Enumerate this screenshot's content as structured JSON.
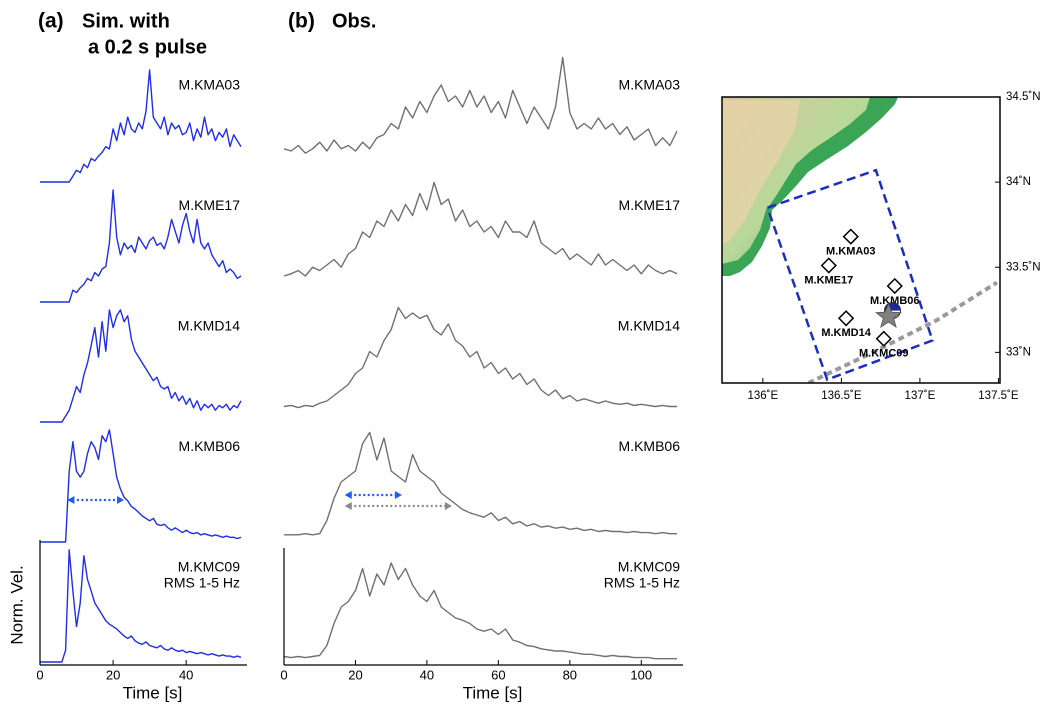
{
  "chart_data": [
    {
      "type": "line",
      "panel_label": "(a)",
      "title": [
        "Sim. with",
        "a 0.2 s pulse"
      ],
      "title_color": "#1a3cf0",
      "xlabel": "Time [s]",
      "ylabel": "Norm. Vel.",
      "x": [
        0,
        1,
        2,
        3,
        4,
        5,
        6,
        7,
        8,
        9,
        10,
        11,
        12,
        13,
        14,
        15,
        16,
        17,
        18,
        19,
        20,
        21,
        22,
        23,
        24,
        25,
        26,
        27,
        28,
        29,
        30,
        31,
        32,
        33,
        34,
        35,
        36,
        37,
        38,
        39,
        40,
        41,
        42,
        43,
        44,
        45,
        46,
        47,
        48,
        49,
        50,
        51,
        52,
        53,
        54,
        55
      ],
      "xlim": [
        0,
        55
      ],
      "xticks": [
        0,
        20,
        40
      ],
      "ylim": [
        0,
        1
      ],
      "series": [
        {
          "name": "M.KMA03",
          "color": "#1f2fe6",
          "values": [
            0,
            0,
            0,
            0,
            0,
            0,
            0,
            0,
            0,
            0.05,
            0.1,
            0.08,
            0.15,
            0.12,
            0.2,
            0.18,
            0.22,
            0.25,
            0.3,
            0.28,
            0.45,
            0.35,
            0.5,
            0.4,
            0.55,
            0.45,
            0.42,
            0.5,
            0.45,
            0.6,
            0.95,
            0.55,
            0.5,
            0.45,
            0.55,
            0.4,
            0.5,
            0.45,
            0.48,
            0.4,
            0.42,
            0.5,
            0.35,
            0.45,
            0.38,
            0.55,
            0.4,
            0.45,
            0.35,
            0.42,
            0.38,
            0.45,
            0.3,
            0.4,
            0.35,
            0.3
          ]
        },
        {
          "name": "M.KME17",
          "color": "#1f2fe6",
          "values": [
            0,
            0,
            0,
            0,
            0,
            0,
            0,
            0,
            0,
            0.1,
            0.08,
            0.12,
            0.15,
            0.2,
            0.18,
            0.25,
            0.22,
            0.28,
            0.3,
            0.5,
            0.95,
            0.55,
            0.4,
            0.5,
            0.45,
            0.48,
            0.42,
            0.55,
            0.5,
            0.45,
            0.52,
            0.55,
            0.48,
            0.5,
            0.45,
            0.55,
            0.7,
            0.6,
            0.5,
            0.65,
            0.75,
            0.6,
            0.5,
            0.7,
            0.5,
            0.45,
            0.5,
            0.4,
            0.35,
            0.3,
            0.35,
            0.25,
            0.28,
            0.25,
            0.2,
            0.22
          ]
        },
        {
          "name": "M.KMD14",
          "color": "#1f2fe6",
          "values": [
            0,
            0,
            0,
            0,
            0,
            0,
            0,
            0.05,
            0.1,
            0.2,
            0.3,
            0.25,
            0.4,
            0.5,
            0.65,
            0.8,
            0.55,
            0.85,
            0.6,
            0.95,
            0.8,
            0.9,
            0.95,
            0.85,
            0.9,
            0.7,
            0.6,
            0.55,
            0.5,
            0.45,
            0.4,
            0.35,
            0.38,
            0.3,
            0.28,
            0.3,
            0.2,
            0.25,
            0.18,
            0.22,
            0.15,
            0.2,
            0.12,
            0.18,
            0.1,
            0.15,
            0.12,
            0.15,
            0.1,
            0.14,
            0.12,
            0.15,
            0.1,
            0.14,
            0.12,
            0.18
          ]
        },
        {
          "name": "M.KMB06",
          "color": "#1f2fe6",
          "values": [
            0,
            0,
            0,
            0,
            0,
            0,
            0,
            0,
            0.6,
            0.85,
            0.6,
            0.55,
            0.6,
            0.75,
            0.85,
            0.8,
            0.7,
            0.9,
            0.85,
            0.95,
            0.75,
            0.55,
            0.45,
            0.38,
            0.35,
            0.3,
            0.28,
            0.25,
            0.22,
            0.2,
            0.18,
            0.2,
            0.15,
            0.14,
            0.15,
            0.12,
            0.1,
            0.12,
            0.1,
            0.08,
            0.1,
            0.08,
            0.07,
            0.08,
            0.06,
            0.07,
            0.06,
            0.05,
            0.06,
            0.05,
            0.04,
            0.05,
            0.04,
            0.04,
            0.03,
            0.04
          ]
        },
        {
          "name": "M.KMC09",
          "color": "#1f2fe6",
          "values": [
            0,
            0,
            0,
            0,
            0,
            0,
            0,
            0.1,
            0.95,
            0.6,
            0.3,
            0.5,
            0.9,
            0.7,
            0.6,
            0.5,
            0.45,
            0.4,
            0.35,
            0.32,
            0.3,
            0.28,
            0.25,
            0.22,
            0.2,
            0.22,
            0.18,
            0.16,
            0.15,
            0.17,
            0.14,
            0.13,
            0.12,
            0.14,
            0.11,
            0.1,
            0.12,
            0.1,
            0.09,
            0.1,
            0.08,
            0.09,
            0.08,
            0.07,
            0.08,
            0.07,
            0.06,
            0.07,
            0.06,
            0.05,
            0.06,
            0.05,
            0.05,
            0.04,
            0.05,
            0.04
          ]
        }
      ],
      "note": {
        "series": 4,
        "text": "RMS 1-5 Hz"
      },
      "arrows": [
        {
          "series": 3,
          "start": 7.5,
          "end": 23,
          "color": "#1a5cff"
        }
      ]
    },
    {
      "type": "line",
      "panel_label": "(b)",
      "title": [
        "Obs."
      ],
      "title_color": "#9a9a9a",
      "xlabel": "Time [s]",
      "x": [
        0,
        2,
        4,
        6,
        8,
        10,
        12,
        14,
        16,
        18,
        20,
        22,
        24,
        26,
        28,
        30,
        32,
        34,
        36,
        38,
        40,
        42,
        44,
        46,
        48,
        50,
        52,
        54,
        56,
        58,
        60,
        62,
        64,
        66,
        68,
        70,
        72,
        74,
        76,
        78,
        80,
        82,
        84,
        86,
        88,
        90,
        92,
        94,
        96,
        98,
        100,
        102,
        104,
        106,
        108,
        110
      ],
      "xlim": [
        0,
        110
      ],
      "xticks": [
        0,
        20,
        40,
        60,
        80,
        100
      ],
      "ylim": [
        0,
        1
      ],
      "series": [
        {
          "name": "M.KMA03",
          "color": "#707070",
          "values": [
            0.12,
            0.1,
            0.15,
            0.08,
            0.12,
            0.18,
            0.1,
            0.2,
            0.12,
            0.15,
            0.1,
            0.18,
            0.12,
            0.22,
            0.25,
            0.35,
            0.3,
            0.5,
            0.4,
            0.55,
            0.45,
            0.6,
            0.7,
            0.55,
            0.6,
            0.5,
            0.65,
            0.5,
            0.6,
            0.45,
            0.55,
            0.4,
            0.65,
            0.5,
            0.35,
            0.5,
            0.4,
            0.3,
            0.5,
            0.95,
            0.45,
            0.3,
            0.35,
            0.3,
            0.4,
            0.3,
            0.35,
            0.25,
            0.32,
            0.2,
            0.25,
            0.3,
            0.15,
            0.22,
            0.15,
            0.28
          ]
        },
        {
          "name": "M.KME17",
          "color": "#707070",
          "values": [
            0.1,
            0.12,
            0.15,
            0.1,
            0.18,
            0.15,
            0.2,
            0.25,
            0.18,
            0.3,
            0.35,
            0.5,
            0.45,
            0.6,
            0.55,
            0.7,
            0.6,
            0.75,
            0.65,
            0.85,
            0.7,
            0.95,
            0.75,
            0.8,
            0.6,
            0.7,
            0.55,
            0.6,
            0.5,
            0.55,
            0.45,
            0.6,
            0.5,
            0.5,
            0.45,
            0.6,
            0.4,
            0.35,
            0.3,
            0.35,
            0.25,
            0.3,
            0.25,
            0.2,
            0.3,
            0.2,
            0.25,
            0.2,
            0.15,
            0.2,
            0.12,
            0.2,
            0.15,
            0.12,
            0.15,
            0.12
          ]
        },
        {
          "name": "M.KMD14",
          "color": "#707070",
          "values": [
            0.05,
            0.06,
            0.04,
            0.06,
            0.05,
            0.08,
            0.1,
            0.15,
            0.2,
            0.25,
            0.35,
            0.4,
            0.55,
            0.5,
            0.65,
            0.75,
            0.95,
            0.85,
            0.9,
            0.85,
            0.88,
            0.75,
            0.7,
            0.8,
            0.65,
            0.6,
            0.5,
            0.55,
            0.4,
            0.45,
            0.35,
            0.4,
            0.3,
            0.35,
            0.25,
            0.3,
            0.2,
            0.15,
            0.2,
            0.12,
            0.15,
            0.1,
            0.12,
            0.1,
            0.08,
            0.1,
            0.08,
            0.07,
            0.08,
            0.06,
            0.07,
            0.06,
            0.05,
            0.06,
            0.05,
            0.05
          ]
        },
        {
          "name": "M.KMB06",
          "color": "#707070",
          "values": [
            0.02,
            0.02,
            0.02,
            0.03,
            0.02,
            0.03,
            0.15,
            0.35,
            0.5,
            0.55,
            0.6,
            0.85,
            0.95,
            0.7,
            0.9,
            0.6,
            0.55,
            0.5,
            0.75,
            0.6,
            0.55,
            0.5,
            0.4,
            0.35,
            0.3,
            0.25,
            0.22,
            0.2,
            0.18,
            0.22,
            0.15,
            0.18,
            0.12,
            0.14,
            0.1,
            0.12,
            0.09,
            0.1,
            0.08,
            0.09,
            0.07,
            0.08,
            0.06,
            0.07,
            0.05,
            0.06,
            0.05,
            0.05,
            0.04,
            0.05,
            0.04,
            0.04,
            0.03,
            0.04,
            0.03,
            0.03
          ]
        },
        {
          "name": "M.KMC09",
          "color": "#707070",
          "values": [
            0.05,
            0.04,
            0.05,
            0.04,
            0.05,
            0.06,
            0.15,
            0.35,
            0.5,
            0.55,
            0.65,
            0.85,
            0.6,
            0.8,
            0.7,
            0.9,
            0.75,
            0.85,
            0.7,
            0.6,
            0.55,
            0.65,
            0.5,
            0.45,
            0.4,
            0.38,
            0.35,
            0.3,
            0.28,
            0.3,
            0.25,
            0.3,
            0.2,
            0.18,
            0.15,
            0.14,
            0.12,
            0.11,
            0.1,
            0.1,
            0.09,
            0.08,
            0.07,
            0.07,
            0.06,
            0.05,
            0.06,
            0.05,
            0.05,
            0.04,
            0.04,
            0.04,
            0.03,
            0.03,
            0.03,
            0.03
          ]
        }
      ],
      "note": {
        "series": 4,
        "text": "RMS 1-5 Hz"
      },
      "arrows": [
        {
          "series": 3,
          "start": 17,
          "end": 33,
          "color": "#1a5cff"
        },
        {
          "series": 3,
          "start": 17,
          "end": 47,
          "color": "#8a8a8a"
        }
      ]
    },
    {
      "type": "map",
      "xlim": [
        135.74,
        137.51
      ],
      "ylim": [
        32.82,
        34.5
      ],
      "xticks": [
        {
          "value": 136,
          "label": "136˚E"
        },
        {
          "value": 136.5,
          "label": "136.5˚E"
        },
        {
          "value": 137,
          "label": "137˚E"
        },
        {
          "value": 137.5,
          "label": "137.5˚E"
        }
      ],
      "yticks": [
        {
          "value": 33,
          "label": "33˚N"
        },
        {
          "value": 33.5,
          "label": "33.5˚N"
        },
        {
          "value": 34,
          "label": "34˚N"
        },
        {
          "value": 34.5,
          "label": "34.5˚N"
        }
      ],
      "stations": [
        {
          "name": "M.KMA03",
          "lon": 136.56,
          "lat": 33.68
        },
        {
          "name": "M.KME17",
          "lon": 136.42,
          "lat": 33.51
        },
        {
          "name": "M.KMB06",
          "lon": 136.84,
          "lat": 33.39
        },
        {
          "name": "M.KMD14",
          "lon": 136.53,
          "lat": 33.2
        },
        {
          "name": "M.KMC09",
          "lon": 136.77,
          "lat": 33.08
        }
      ],
      "epicenter": {
        "lon": 136.8,
        "lat": 33.21,
        "color": "#808080"
      },
      "fault": {
        "color": "#1a2fc0",
        "lon": [
          136.03,
          136.72,
          137.08,
          136.41,
          136.03
        ],
        "lat": [
          33.85,
          34.07,
          33.07,
          32.84,
          33.85
        ]
      },
      "trench": {
        "color": "#9a9a9a",
        "lon": [
          136.29,
          136.7,
          137.11,
          137.3,
          137.49
        ],
        "lat": [
          32.82,
          33.0,
          33.19,
          33.3,
          33.41
        ]
      }
    }
  ]
}
